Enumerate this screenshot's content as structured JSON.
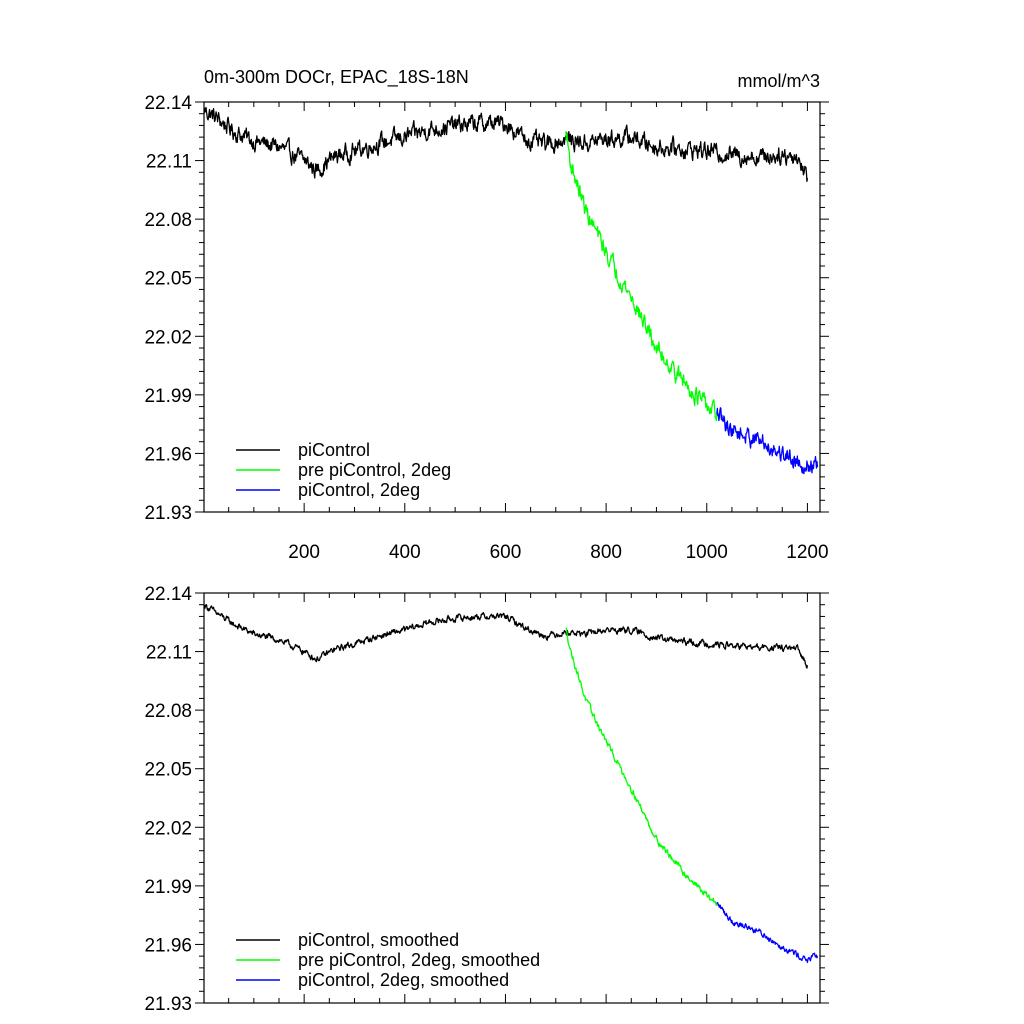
{
  "header": {
    "title": "0m-300m DOCr, EPAC_18S-18N",
    "units": "mmol/m^3"
  },
  "chart_data": [
    {
      "type": "line",
      "panel": "top",
      "xlim": [
        1,
        1225
      ],
      "ylim": [
        21.93,
        22.14
      ],
      "xticks": [
        200,
        400,
        600,
        800,
        1000,
        1200
      ],
      "xtick_labels": [
        "200",
        "400",
        "600",
        "800",
        "1000",
        "1200"
      ],
      "yticks": [
        21.93,
        21.96,
        21.99,
        22.02,
        22.05,
        22.08,
        22.11,
        22.14
      ],
      "ytick_labels": [
        "21.93",
        "21.96",
        "21.99",
        "22.02",
        "22.05",
        "22.08",
        "22.11",
        "22.14"
      ],
      "legend_placement": "lower-left",
      "series": [
        {
          "name": "piControl",
          "color": "#000000",
          "noise": 0.0035,
          "x": [
            1,
            30,
            60,
            100,
            150,
            200,
            225,
            260,
            300,
            350,
            400,
            450,
            500,
            550,
            600,
            640,
            680,
            720,
            760,
            800,
            850,
            900,
            950,
            1000,
            1050,
            1100,
            1150,
            1180,
            1200
          ],
          "values": [
            22.136,
            22.131,
            22.125,
            22.12,
            22.117,
            22.11,
            22.105,
            22.112,
            22.115,
            22.119,
            22.122,
            22.126,
            22.128,
            22.129,
            22.129,
            22.121,
            22.118,
            22.121,
            22.119,
            22.121,
            22.122,
            22.117,
            22.116,
            22.115,
            22.113,
            22.112,
            22.113,
            22.112,
            22.101
          ]
        },
        {
          "name": "pre piControl, 2deg",
          "color": "#00ff00",
          "noise": 0.0035,
          "x": [
            720,
            730,
            760,
            800,
            850,
            900,
            950,
            1000,
            1020
          ],
          "values": [
            22.125,
            22.108,
            22.084,
            22.063,
            22.04,
            22.014,
            21.998,
            21.984,
            21.98
          ]
        },
        {
          "name": "piControl, 2deg",
          "color": "#0000ff",
          "noise": 0.0035,
          "x": [
            1020,
            1050,
            1100,
            1150,
            1200,
            1220
          ],
          "values": [
            21.98,
            21.972,
            21.967,
            21.96,
            21.954,
            21.953
          ]
        }
      ]
    },
    {
      "type": "line",
      "panel": "bottom",
      "xlim": [
        1,
        1225
      ],
      "ylim": [
        21.93,
        22.14
      ],
      "xticks": [
        200,
        400,
        600,
        800,
        1000,
        1200
      ],
      "yticks": [
        21.93,
        21.96,
        21.99,
        22.02,
        22.05,
        22.08,
        22.11,
        22.14
      ],
      "ytick_labels": [
        "21.93",
        "21.96",
        "21.99",
        "22.02",
        "22.05",
        "22.08",
        "22.11",
        "22.14"
      ],
      "legend_placement": "lower-left",
      "series": [
        {
          "name": "piControl, smoothed",
          "color": "#000000",
          "noise": 0.0013,
          "x": [
            1,
            30,
            60,
            100,
            150,
            200,
            225,
            260,
            300,
            350,
            400,
            450,
            500,
            550,
            600,
            640,
            680,
            720,
            760,
            800,
            850,
            900,
            950,
            1000,
            1050,
            1100,
            1150,
            1180,
            1200
          ],
          "values": [
            22.134,
            22.129,
            22.124,
            22.119,
            22.116,
            22.11,
            22.106,
            22.111,
            22.114,
            22.118,
            22.121,
            22.125,
            22.127,
            22.128,
            22.128,
            22.122,
            22.118,
            22.12,
            22.119,
            22.121,
            22.121,
            22.117,
            22.115,
            22.114,
            22.113,
            22.112,
            22.112,
            22.111,
            22.103
          ]
        },
        {
          "name": "pre piControl, 2deg, smoothed",
          "color": "#00ff00",
          "noise": 0.0013,
          "x": [
            720,
            730,
            760,
            800,
            850,
            900,
            950,
            1000,
            1020
          ],
          "values": [
            22.122,
            22.11,
            22.085,
            22.064,
            22.04,
            22.014,
            21.998,
            21.985,
            21.981
          ]
        },
        {
          "name": "piControl, 2deg, smoothed",
          "color": "#0000ff",
          "noise": 0.0013,
          "x": [
            1020,
            1050,
            1100,
            1150,
            1200,
            1220
          ],
          "values": [
            21.981,
            21.972,
            21.967,
            21.959,
            21.952,
            21.954
          ]
        }
      ]
    }
  ]
}
